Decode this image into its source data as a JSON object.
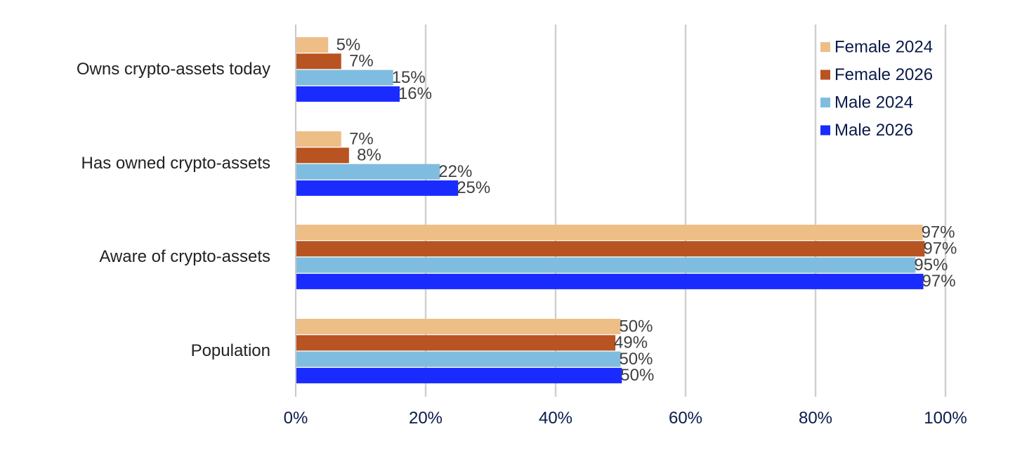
{
  "chart_data": {
    "type": "bar",
    "orientation": "horizontal",
    "categories": [
      "Owns crypto-assets today",
      "Has owned crypto-assets",
      "Aware of crypto-assets",
      "Population"
    ],
    "series": [
      {
        "name": "Female 2024",
        "color": "#EEBE87",
        "values": [
          5,
          7,
          96.5,
          50
        ],
        "labels": [
          "5%",
          "7%",
          "97%",
          "50%"
        ]
      },
      {
        "name": "Female 2026",
        "color": "#B85322",
        "values": [
          7,
          8.2,
          96.8,
          49.2
        ],
        "labels": [
          "7%",
          "8%",
          "97%",
          "49%"
        ]
      },
      {
        "name": "Male 2024",
        "color": "#7FBDE0",
        "values": [
          15,
          22.2,
          95.4,
          50
        ],
        "labels": [
          "15%",
          "22%",
          "95%",
          "50%"
        ]
      },
      {
        "name": "Male 2026",
        "color": "#1A2BFF",
        "values": [
          16,
          25,
          96.6,
          50.2
        ],
        "labels": [
          "16%",
          "25%",
          "97%",
          "50%"
        ]
      }
    ],
    "xlim": [
      0,
      100
    ],
    "xticks": [
      "0%",
      "20%",
      "40%",
      "60%",
      "80%",
      "100%"
    ],
    "grid": "vertical",
    "legend_position": "top-right"
  }
}
